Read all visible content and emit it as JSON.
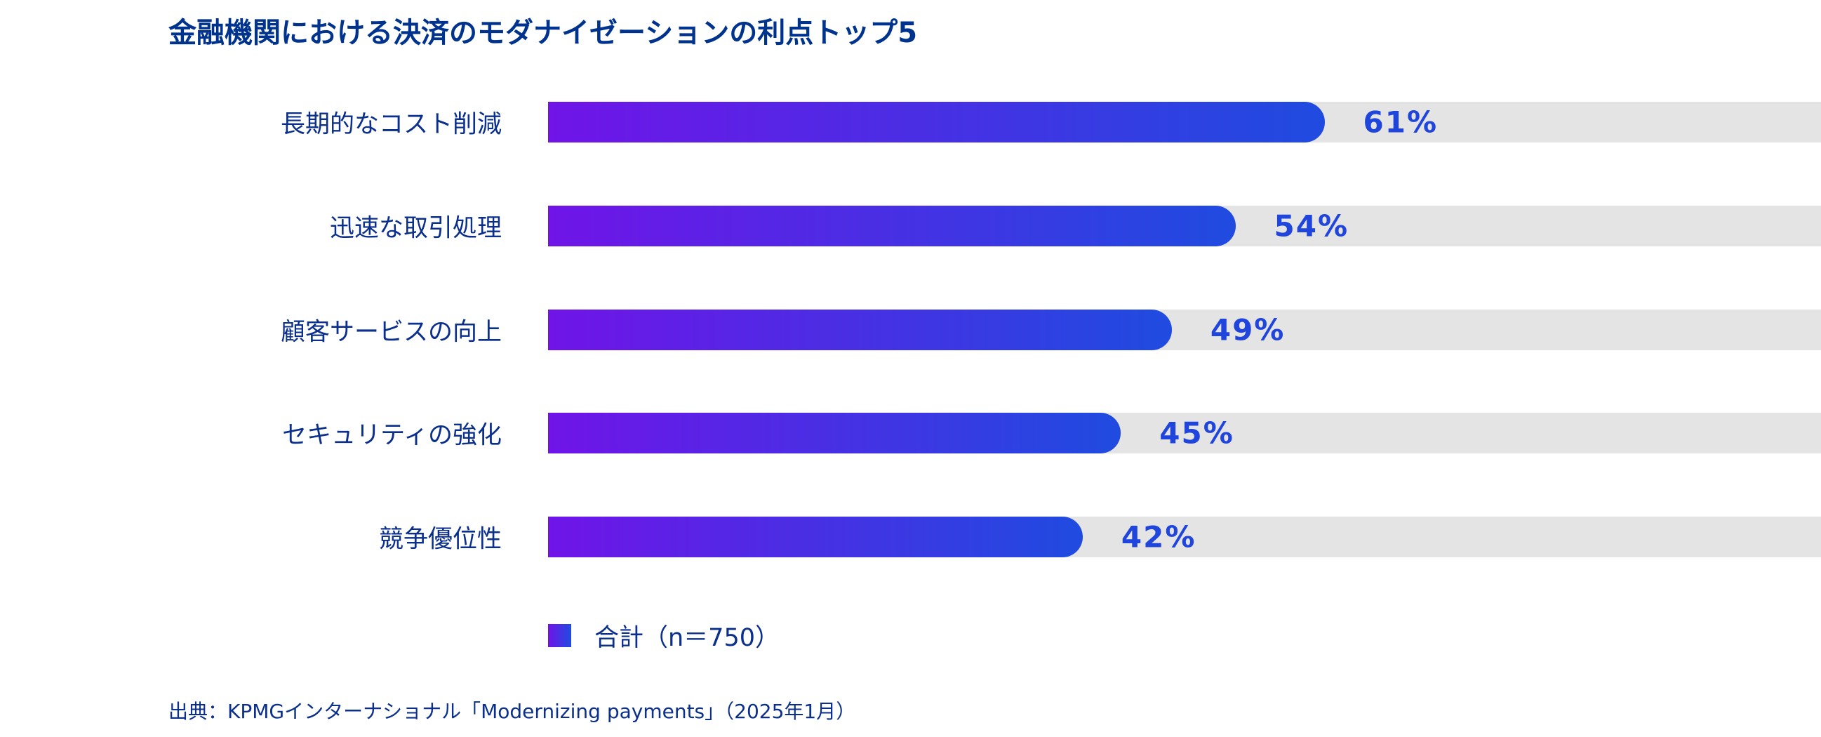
{
  "chart_data": {
    "type": "bar",
    "orientation": "horizontal",
    "title": "金融機関における決済のモダナイゼーションの利点トップ5",
    "categories": [
      "長期的なコスト削減",
      "迅速な取引処理",
      "顧客サービスの向上",
      "セキュリティの強化",
      "競争優位性"
    ],
    "series": [
      {
        "name": "合計（n＝750）",
        "values": [
          61,
          54,
          49,
          45,
          42
        ]
      }
    ],
    "value_labels": [
      "61%",
      "54%",
      "49%",
      "45%",
      "42%"
    ],
    "xlim": [
      0,
      100
    ],
    "grid": false,
    "legend_position": "bottom-left",
    "colors": {
      "bar_start": "#7014e8",
      "bar_end": "#1f4be0",
      "track": "#e4e4e4",
      "text": "#0a2f8c",
      "value": "#1f45dd"
    }
  },
  "source": "出典：KPMGインターナショナル「Modernizing payments」（2025年1月）"
}
